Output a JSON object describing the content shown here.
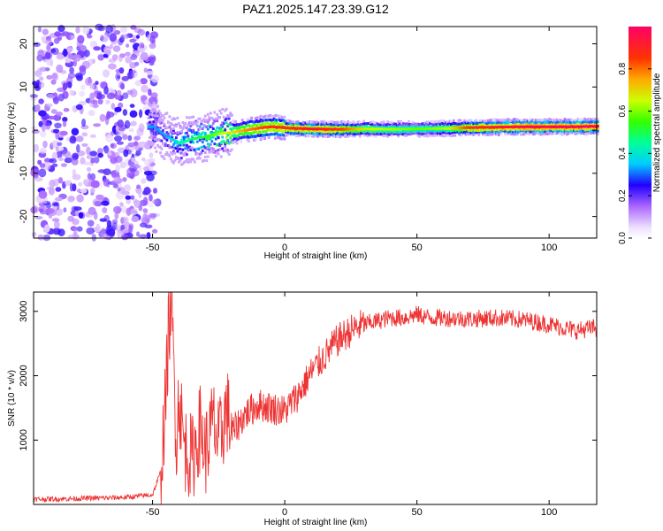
{
  "title": "PAZ1.2025.147.23.39.G12",
  "chart_data": [
    {
      "type": "heatmap",
      "title": "PAZ1.2025.147.23.39.G12",
      "xlabel": "Height of straight line (km)",
      "ylabel": "Frequency (Hz)",
      "xlim": [
        -95,
        118
      ],
      "ylim": [
        -25,
        24
      ],
      "xticks": [
        -50,
        0,
        50,
        100
      ],
      "yticks": [
        -20,
        -10,
        0,
        10,
        20
      ],
      "colorbar": {
        "label": "Normalized spectral amplitude",
        "range": [
          0,
          1
        ],
        "ticks": [
          0.0,
          0.2,
          0.4,
          0.6,
          0.8
        ],
        "tick_labels": [
          "0.0",
          "0.2",
          "0.4",
          "0.6",
          "0.8"
        ]
      },
      "ridge": {
        "description": "dominant frequency ridge",
        "x": [
          -50,
          -45,
          -40,
          -35,
          -30,
          -25,
          -20,
          -15,
          -10,
          -5,
          0,
          10,
          20,
          30,
          40,
          50,
          60,
          70,
          80,
          90,
          100,
          110,
          118
        ],
        "freq": [
          0.8,
          -1.5,
          -3.0,
          -2.0,
          -1.5,
          -0.8,
          -0.5,
          0.0,
          0.5,
          0.8,
          0.5,
          0.3,
          0.2,
          0.3,
          0.2,
          0.3,
          0.4,
          0.6,
          0.7,
          0.8,
          0.8,
          0.8,
          0.9
        ],
        "amplitude": [
          0.25,
          0.25,
          0.35,
          0.4,
          0.45,
          0.55,
          0.6,
          0.7,
          0.75,
          0.8,
          0.8,
          0.85,
          0.8,
          0.6,
          0.55,
          0.5,
          0.55,
          0.8,
          0.85,
          0.9,
          0.9,
          0.9,
          0.9
        ]
      },
      "noise_region": {
        "x_range": [
          -95,
          -48
        ],
        "amplitude": [
          0.05,
          0.25
        ]
      }
    },
    {
      "type": "line",
      "xlabel": "Height of straight line (km)",
      "ylabel": "SNR (10 * v/v)",
      "xlim": [
        -95,
        118
      ],
      "ylim": [
        0,
        3300
      ],
      "xticks": [
        -50,
        0,
        50,
        100
      ],
      "yticks": [
        1000,
        2000,
        3000
      ],
      "color": "#ee3333",
      "series": [
        {
          "x": [
            -95,
            -80,
            -60,
            -50,
            -47,
            -45,
            -44,
            -43,
            -42,
            -41,
            -40,
            -38,
            -35,
            -32,
            -30,
            -27,
            -25,
            -22,
            -20,
            -15,
            -10,
            -5,
            0,
            5,
            10,
            15,
            20,
            25,
            30,
            35,
            40,
            45,
            50,
            55,
            60,
            70,
            80,
            90,
            100,
            105,
            110,
            118
          ],
          "values": [
            80,
            90,
            110,
            150,
            500,
            1600,
            2700,
            3150,
            2200,
            1000,
            1700,
            900,
            700,
            1200,
            800,
            1300,
            900,
            1500,
            1100,
            1400,
            1550,
            1500,
            1450,
            1700,
            2050,
            2300,
            2550,
            2700,
            2800,
            2850,
            2900,
            2900,
            2950,
            2900,
            2900,
            2880,
            2900,
            2870,
            2800,
            2750,
            2700,
            2750
          ]
        }
      ]
    }
  ]
}
